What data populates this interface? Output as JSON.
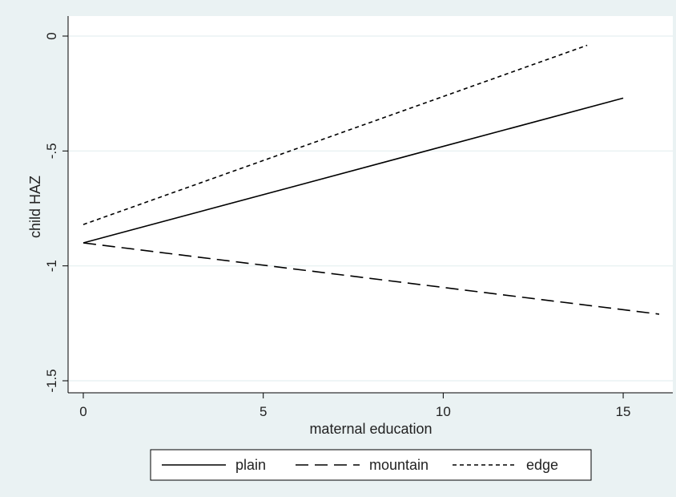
{
  "chart_data": {
    "type": "line",
    "title": "",
    "xlabel": "maternal education",
    "ylabel": "child HAZ",
    "xlim": [
      0,
      16
    ],
    "ylim": [
      -1.5,
      0
    ],
    "xticks": [
      0,
      5,
      10,
      15
    ],
    "xtick_labels": [
      "0",
      "5",
      "10",
      "15"
    ],
    "yticks": [
      0,
      -0.5,
      -1,
      -1.5
    ],
    "ytick_labels": [
      "0",
      "-.5",
      "-1",
      "-1.5"
    ],
    "grid": true,
    "legend_position": "bottom",
    "series": [
      {
        "name": "plain",
        "style": "solid",
        "x": [
          0,
          15
        ],
        "y": [
          -0.9,
          -0.27
        ]
      },
      {
        "name": "mountain",
        "style": "long-dash",
        "x": [
          0,
          16
        ],
        "y": [
          -0.9,
          -1.21
        ]
      },
      {
        "name": "edge",
        "style": "short-dash",
        "x": [
          0,
          14
        ],
        "y": [
          -0.82,
          -0.04
        ]
      }
    ]
  },
  "colors": {
    "outer_background": "#eaf2f3",
    "plot_background": "#ffffff",
    "gridline": "#eaf2f3",
    "line": "#000000"
  }
}
